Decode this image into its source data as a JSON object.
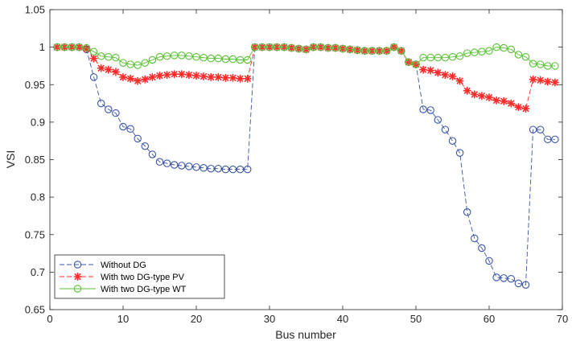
{
  "chart_data": {
    "type": "line",
    "title": "",
    "xlabel": "Bus number",
    "ylabel": "VSI",
    "xlim": [
      0,
      70
    ],
    "ylim": [
      0.65,
      1.05
    ],
    "xticks": [
      0,
      10,
      20,
      30,
      40,
      50,
      60,
      70
    ],
    "yticks": [
      0.65,
      0.7,
      0.75,
      0.8,
      0.85,
      0.9,
      0.95,
      1,
      1.05
    ],
    "grid": false,
    "legend_position": "bottom-left",
    "x": [
      1,
      2,
      3,
      4,
      5,
      6,
      7,
      8,
      9,
      10,
      11,
      12,
      13,
      14,
      15,
      16,
      17,
      18,
      19,
      20,
      21,
      22,
      23,
      24,
      25,
      26,
      27,
      28,
      29,
      30,
      31,
      32,
      33,
      34,
      35,
      36,
      37,
      38,
      39,
      40,
      41,
      42,
      43,
      44,
      45,
      46,
      47,
      48,
      49,
      50,
      51,
      52,
      53,
      54,
      55,
      56,
      57,
      58,
      59,
      60,
      61,
      62,
      63,
      64,
      65,
      66,
      67,
      68,
      69
    ],
    "series": [
      {
        "name": "Without DG",
        "color": "#3a55a8",
        "line_style": "dashed",
        "marker": "circle",
        "values": [
          1.0,
          1.0,
          1.0,
          1.0,
          0.997,
          0.96,
          0.925,
          0.917,
          0.912,
          0.894,
          0.891,
          0.878,
          0.868,
          0.857,
          0.847,
          0.845,
          0.843,
          0.842,
          0.841,
          0.84,
          0.839,
          0.838,
          0.838,
          0.837,
          0.837,
          0.837,
          0.837,
          1.0,
          1.0,
          1.0,
          1.0,
          1.0,
          0.999,
          0.998,
          0.997,
          1.0,
          1.0,
          0.999,
          0.999,
          0.998,
          0.997,
          0.996,
          0.995,
          0.995,
          0.995,
          0.995,
          1.0,
          0.995,
          0.98,
          0.977,
          0.917,
          0.916,
          0.903,
          0.89,
          0.875,
          0.859,
          0.78,
          0.745,
          0.732,
          0.715,
          0.693,
          0.692,
          0.691,
          0.685,
          0.683,
          0.89,
          0.89,
          0.877,
          0.877
        ]
      },
      {
        "name": "With two DG-type PV",
        "color": "#ff2a2a",
        "line_style": "dashed",
        "marker": "asterisk",
        "values": [
          1.0,
          1.0,
          1.0,
          1.0,
          0.998,
          0.985,
          0.972,
          0.97,
          0.967,
          0.96,
          0.958,
          0.955,
          0.957,
          0.96,
          0.962,
          0.963,
          0.964,
          0.964,
          0.963,
          0.962,
          0.961,
          0.96,
          0.96,
          0.959,
          0.959,
          0.958,
          0.958,
          1.0,
          1.0,
          1.0,
          1.0,
          1.0,
          0.999,
          0.998,
          0.997,
          1.0,
          1.0,
          0.999,
          0.999,
          0.998,
          0.997,
          0.996,
          0.995,
          0.995,
          0.995,
          0.995,
          1.0,
          0.995,
          0.98,
          0.977,
          0.97,
          0.969,
          0.966,
          0.963,
          0.961,
          0.955,
          0.942,
          0.937,
          0.935,
          0.933,
          0.929,
          0.928,
          0.925,
          0.92,
          0.918,
          0.957,
          0.956,
          0.954,
          0.953
        ]
      },
      {
        "name": "With two DG-type WT",
        "color": "#59c234",
        "line_style": "solid",
        "marker": "circle",
        "values": [
          1.0,
          1.0,
          1.0,
          1.0,
          0.999,
          0.994,
          0.988,
          0.987,
          0.986,
          0.979,
          0.977,
          0.976,
          0.979,
          0.983,
          0.987,
          0.988,
          0.989,
          0.989,
          0.988,
          0.987,
          0.986,
          0.985,
          0.985,
          0.984,
          0.984,
          0.983,
          0.983,
          1.0,
          1.0,
          1.0,
          1.0,
          1.0,
          0.999,
          0.998,
          0.997,
          1.0,
          1.0,
          0.999,
          0.999,
          0.998,
          0.997,
          0.996,
          0.995,
          0.995,
          0.995,
          0.995,
          1.0,
          0.995,
          0.98,
          0.977,
          0.986,
          0.986,
          0.986,
          0.986,
          0.987,
          0.988,
          0.992,
          0.993,
          0.994,
          0.995,
          1.0,
          0.999,
          0.997,
          0.99,
          0.987,
          0.978,
          0.977,
          0.975,
          0.975
        ]
      }
    ]
  }
}
